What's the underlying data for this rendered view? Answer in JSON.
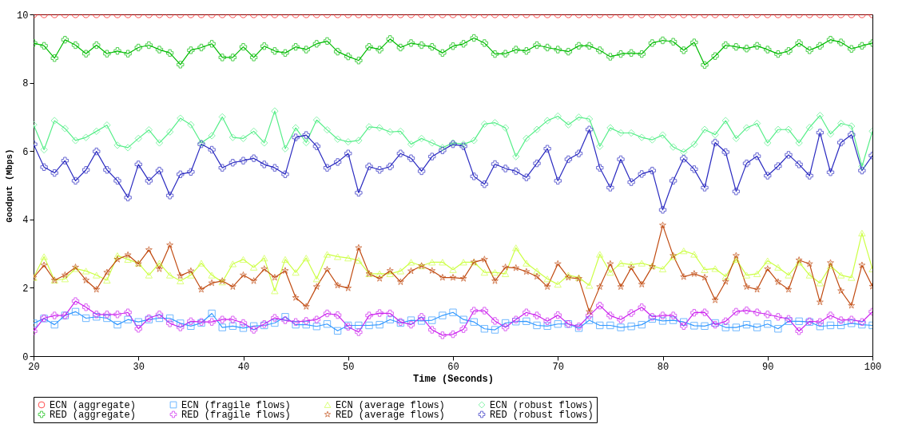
{
  "chart_data": {
    "type": "line",
    "xlabel": "Time (Seconds)",
    "ylabel": "Goodput (Mbps)",
    "x": [
      20,
      21,
      22,
      23,
      24,
      25,
      26,
      27,
      28,
      29,
      30,
      31,
      32,
      33,
      34,
      35,
      36,
      37,
      38,
      39,
      40,
      41,
      42,
      43,
      44,
      45,
      46,
      47,
      48,
      49,
      50,
      51,
      52,
      53,
      54,
      55,
      56,
      57,
      58,
      59,
      60,
      61,
      62,
      63,
      64,
      65,
      66,
      67,
      68,
      69,
      70,
      71,
      72,
      73,
      74,
      75,
      76,
      77,
      78,
      79,
      80,
      81,
      82,
      83,
      84,
      85,
      86,
      87,
      88,
      89,
      90,
      91,
      92,
      93,
      94,
      95,
      96,
      97,
      98,
      99,
      100
    ],
    "xlim": [
      20,
      100
    ],
    "xticks": [
      20,
      30,
      40,
      50,
      60,
      70,
      80,
      90,
      100
    ],
    "ylim": [
      0,
      10
    ],
    "yticks": [
      0,
      2,
      4,
      6,
      8,
      10
    ],
    "grid": false,
    "legend": "bottom",
    "line_style": "solid",
    "series": [
      {
        "name": "ECN (aggregate)",
        "color": "#ff0000",
        "marker": "circle",
        "values": [
          10,
          10,
          10,
          10,
          10,
          10,
          10,
          10,
          10,
          10,
          10,
          10,
          10,
          10,
          10,
          10,
          10,
          10,
          10,
          10,
          10,
          10,
          10,
          10,
          10,
          10,
          10,
          10,
          10,
          10,
          10,
          10,
          10,
          10,
          10,
          10,
          10,
          10,
          10,
          10,
          10,
          10,
          10,
          10,
          10,
          10,
          10,
          10,
          10,
          10,
          10,
          10,
          10,
          10,
          10,
          10,
          10,
          10,
          10,
          10,
          10,
          10,
          10,
          10,
          10,
          10,
          10,
          10,
          10,
          10,
          10,
          10,
          10,
          10,
          10,
          10,
          10,
          10,
          10,
          10,
          10
        ]
      },
      {
        "name": "ECN (fragile flows)",
        "color": "#3399ff",
        "marker": "square",
        "values": [
          0.96,
          1.1,
          0.92,
          1.19,
          1.3,
          1.11,
          1.15,
          1.11,
          0.92,
          1.07,
          1.0,
          1.07,
          1.11,
          1.11,
          0.96,
          0.88,
          0.97,
          1.25,
          0.84,
          0.88,
          0.82,
          0.88,
          0.9,
          0.97,
          1.15,
          0.92,
          0.92,
          0.87,
          0.94,
          0.74,
          0.9,
          0.9,
          0.9,
          0.92,
          1.07,
          0.97,
          1.05,
          1.03,
          1.05,
          1.19,
          1.28,
          1.07,
          1.0,
          0.8,
          0.77,
          0.97,
          1.01,
          1.02,
          0.9,
          0.88,
          0.94,
          0.94,
          0.82,
          1.05,
          0.9,
          0.9,
          0.84,
          0.87,
          0.92,
          1.09,
          1.03,
          1.05,
          1.0,
          0.89,
          0.88,
          0.97,
          0.84,
          0.84,
          0.92,
          0.84,
          0.94,
          0.8,
          1.02,
          1.02,
          1.0,
          0.87,
          0.9,
          0.9,
          0.96,
          0.92,
          0.9
        ]
      },
      {
        "name": "ECN (average flows)",
        "color": "#ccff44",
        "marker": "triangle",
        "values": [
          2.3,
          2.91,
          2.22,
          2.26,
          2.56,
          2.49,
          2.37,
          2.22,
          2.94,
          2.83,
          2.72,
          2.37,
          2.72,
          2.37,
          2.2,
          2.37,
          2.72,
          2.37,
          2.17,
          2.7,
          2.83,
          2.6,
          2.87,
          1.91,
          2.83,
          2.45,
          2.87,
          2.26,
          2.98,
          2.91,
          2.87,
          2.8,
          2.41,
          2.41,
          2.41,
          2.49,
          2.75,
          2.64,
          2.75,
          2.75,
          2.53,
          2.75,
          2.75,
          2.45,
          2.45,
          2.41,
          3.17,
          2.72,
          2.49,
          2.26,
          2.1,
          2.37,
          2.3,
          2.07,
          2.98,
          2.45,
          2.72,
          2.68,
          2.72,
          2.64,
          2.55,
          2.91,
          3.08,
          2.98,
          2.53,
          2.56,
          2.33,
          2.83,
          2.37,
          2.41,
          2.79,
          2.6,
          2.37,
          2.75,
          2.37,
          2.14,
          2.64,
          2.37,
          2.3,
          3.6,
          2.55
        ]
      },
      {
        "name": "ECN (robust flows)",
        "color": "#55ee88",
        "marker": "diamond",
        "values": [
          6.77,
          6.04,
          6.89,
          6.66,
          6.31,
          6.4,
          6.58,
          6.76,
          6.17,
          6.1,
          6.37,
          6.62,
          6.24,
          6.56,
          6.96,
          6.77,
          6.24,
          6.45,
          7.0,
          6.4,
          6.37,
          6.58,
          6.24,
          7.17,
          6.07,
          6.68,
          6.25,
          6.91,
          6.62,
          6.35,
          6.27,
          6.31,
          6.71,
          6.68,
          6.56,
          6.58,
          6.2,
          6.37,
          6.24,
          6.1,
          6.24,
          6.2,
          6.31,
          6.79,
          6.83,
          6.68,
          5.84,
          6.37,
          6.63,
          6.89,
          7.02,
          6.77,
          6.99,
          6.94,
          6.14,
          6.68,
          6.53,
          6.53,
          6.4,
          6.33,
          6.47,
          6.12,
          5.97,
          6.2,
          6.63,
          6.48,
          6.89,
          6.37,
          6.68,
          6.81,
          6.24,
          6.63,
          6.63,
          6.24,
          6.69,
          7.04,
          6.5,
          6.81,
          6.73,
          5.55,
          6.58
        ]
      },
      {
        "name": "RED (aggregate)",
        "color": "#00bb00",
        "marker": "cross",
        "values": [
          9.16,
          9.08,
          8.72,
          9.26,
          9.1,
          8.85,
          9.1,
          8.85,
          8.93,
          8.85,
          9.03,
          9.1,
          8.97,
          8.87,
          8.53,
          8.95,
          9.03,
          9.14,
          8.74,
          8.74,
          9.05,
          8.74,
          9.07,
          8.93,
          8.87,
          9.05,
          8.97,
          9.14,
          9.22,
          8.91,
          8.77,
          8.65,
          9.05,
          8.97,
          9.28,
          9.03,
          9.16,
          9.1,
          9.05,
          8.87,
          9.07,
          9.14,
          9.31,
          9.16,
          8.84,
          8.85,
          8.97,
          8.93,
          9.1,
          9.03,
          8.97,
          8.91,
          9.08,
          9.08,
          8.95,
          8.76,
          8.84,
          8.87,
          8.84,
          9.16,
          9.24,
          9.2,
          8.95,
          9.18,
          8.52,
          8.78,
          9.1,
          9.05,
          9.0,
          9.08,
          8.97,
          8.84,
          8.93,
          9.16,
          8.95,
          9.08,
          9.26,
          9.18,
          8.99,
          9.08,
          9.16
        ]
      },
      {
        "name": "RED (fragile flows)",
        "color": "#cc22ee",
        "marker": "cross",
        "values": [
          0.73,
          1.11,
          1.19,
          1.19,
          1.61,
          1.43,
          1.22,
          1.22,
          1.22,
          1.28,
          0.8,
          1.11,
          1.22,
          0.96,
          0.84,
          1.02,
          1.0,
          1.0,
          1.07,
          1.07,
          0.97,
          0.77,
          0.94,
          1.12,
          1.05,
          1.0,
          1.03,
          1.07,
          1.25,
          1.2,
          0.86,
          0.7,
          1.19,
          1.26,
          1.25,
          1.0,
          0.92,
          1.15,
          0.77,
          0.61,
          0.64,
          0.79,
          1.33,
          1.33,
          1.03,
          0.84,
          1.07,
          1.28,
          1.19,
          1.02,
          1.2,
          0.94,
          0.87,
          1.19,
          1.48,
          1.19,
          1.07,
          1.26,
          1.43,
          1.15,
          1.19,
          1.19,
          0.88,
          1.27,
          1.28,
          0.92,
          1.02,
          1.3,
          1.34,
          1.28,
          1.22,
          1.15,
          1.09,
          0.73,
          1.02,
          1.0,
          1.19,
          1.05,
          1.07,
          1.0,
          1.3
        ]
      },
      {
        "name": "RED (average flows)",
        "color": "#c04a10",
        "marker": "star",
        "values": [
          2.3,
          2.66,
          2.22,
          2.37,
          2.6,
          2.22,
          1.95,
          2.45,
          2.83,
          2.96,
          2.7,
          3.11,
          2.55,
          3.25,
          2.35,
          2.49,
          1.95,
          2.14,
          2.2,
          2.03,
          2.37,
          2.2,
          2.55,
          2.3,
          2.5,
          1.71,
          1.45,
          2.03,
          2.53,
          2.07,
          1.99,
          3.17,
          2.41,
          2.27,
          2.5,
          2.17,
          2.49,
          2.64,
          2.5,
          2.3,
          2.3,
          2.27,
          2.75,
          2.83,
          2.2,
          2.6,
          2.58,
          2.47,
          2.33,
          2.03,
          2.7,
          2.3,
          2.27,
          1.3,
          2.03,
          2.7,
          2.03,
          2.58,
          2.1,
          2.62,
          3.83,
          2.94,
          2.32,
          2.41,
          2.3,
          1.64,
          2.18,
          2.94,
          2.03,
          1.95,
          2.55,
          2.17,
          1.95,
          2.81,
          2.7,
          1.58,
          2.73,
          1.91,
          1.48,
          2.66,
          2.04
        ]
      },
      {
        "name": "RED (robust flows)",
        "color": "#2a2ac0",
        "marker": "cross",
        "values": [
          6.2,
          5.53,
          5.36,
          5.72,
          5.13,
          5.45,
          5.99,
          5.45,
          5.13,
          4.64,
          5.61,
          5.13,
          5.43,
          4.7,
          5.32,
          5.39,
          6.2,
          6.04,
          5.51,
          5.66,
          5.72,
          5.79,
          5.61,
          5.51,
          5.32,
          6.4,
          6.47,
          6.14,
          5.51,
          5.68,
          5.93,
          4.78,
          5.55,
          5.45,
          5.55,
          5.93,
          5.79,
          5.41,
          5.84,
          6.02,
          6.2,
          6.14,
          5.26,
          5.03,
          5.62,
          5.49,
          5.41,
          5.23,
          5.64,
          6.07,
          5.13,
          5.76,
          5.93,
          6.63,
          5.51,
          4.93,
          5.76,
          5.09,
          5.33,
          5.43,
          4.28,
          5.13,
          5.78,
          5.47,
          4.93,
          6.25,
          5.97,
          4.82,
          5.64,
          5.85,
          5.28,
          5.56,
          5.89,
          5.61,
          5.28,
          6.54,
          5.38,
          6.25,
          6.48,
          5.43,
          5.87
        ]
      }
    ]
  }
}
